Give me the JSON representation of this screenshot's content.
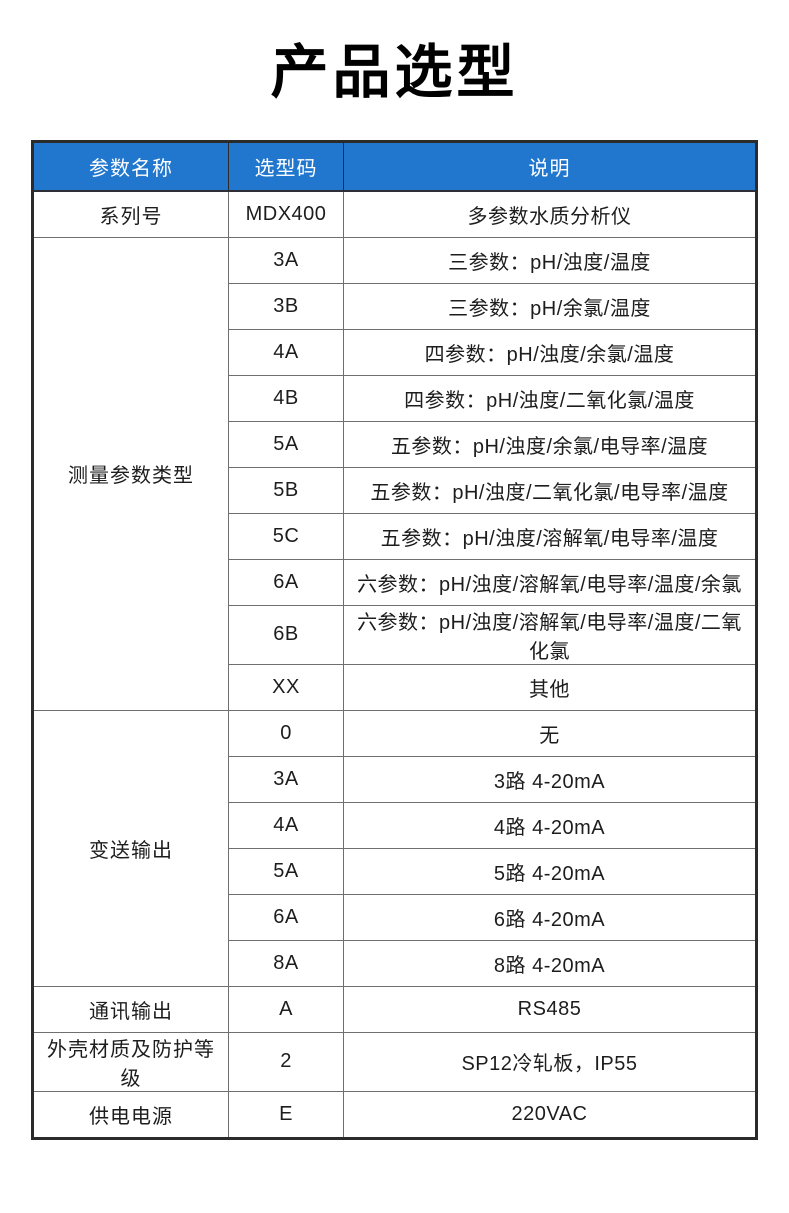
{
  "page": {
    "title": "产品选型"
  },
  "table": {
    "headers": [
      "参数名称",
      "选型码",
      "说明"
    ],
    "sections": [
      {
        "name": "系列号",
        "rows": [
          {
            "code": "MDX400",
            "desc": "多参数水质分析仪"
          }
        ]
      },
      {
        "name": "测量参数类型",
        "rows": [
          {
            "code": "3A",
            "desc": "三参数：pH/浊度/温度"
          },
          {
            "code": "3B",
            "desc": "三参数：pH/余氯/温度"
          },
          {
            "code": "4A",
            "desc": "四参数：pH/浊度/余氯/温度"
          },
          {
            "code": "4B",
            "desc": "四参数：pH/浊度/二氧化氯/温度"
          },
          {
            "code": "5A",
            "desc": "五参数：pH/浊度/余氯/电导率/温度"
          },
          {
            "code": "5B",
            "desc": "五参数：pH/浊度/二氧化氯/电导率/温度"
          },
          {
            "code": "5C",
            "desc": "五参数：pH/浊度/溶解氧/电导率/温度"
          },
          {
            "code": "6A",
            "desc": "六参数：pH/浊度/溶解氧/电导率/温度/余氯"
          },
          {
            "code": "6B",
            "desc": "六参数：pH/浊度/溶解氧/电导率/温度/二氧化氯"
          },
          {
            "code": "XX",
            "desc": "其他"
          }
        ]
      },
      {
        "name": "变送输出",
        "rows": [
          {
            "code": "0",
            "desc": "无"
          },
          {
            "code": "3A",
            "desc": "3路 4-20mA"
          },
          {
            "code": "4A",
            "desc": "4路 4-20mA"
          },
          {
            "code": "5A",
            "desc": "5路 4-20mA"
          },
          {
            "code": "6A",
            "desc": "6路 4-20mA"
          },
          {
            "code": "8A",
            "desc": "8路 4-20mA"
          }
        ]
      },
      {
        "name": "通讯输出",
        "rows": [
          {
            "code": "A",
            "desc": "RS485"
          }
        ]
      },
      {
        "name": "外壳材质及防护等级",
        "rows": [
          {
            "code": "2",
            "desc": "SP12冷轧板，IP55"
          }
        ]
      },
      {
        "name": "供电电源",
        "rows": [
          {
            "code": "E",
            "desc": "220VAC"
          }
        ]
      }
    ]
  },
  "colors": {
    "header_bg": "#2176CE",
    "header_text": "#FFFFFF",
    "outer_border": "#2B2B2B",
    "inner_border": "#6F6F6F",
    "body_text": "#1D1D1D",
    "title_text": "#000000",
    "page_bg": "#FFFFFF"
  }
}
